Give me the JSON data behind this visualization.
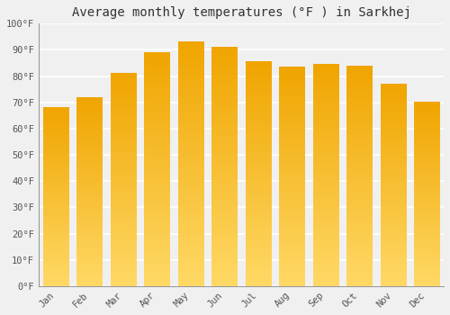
{
  "title": "Average monthly temperatures (°F ) in Sarkhej",
  "months": [
    "Jan",
    "Feb",
    "Mar",
    "Apr",
    "May",
    "Jun",
    "Jul",
    "Aug",
    "Sep",
    "Oct",
    "Nov",
    "Dec"
  ],
  "values": [
    68,
    72,
    81,
    89,
    93,
    91,
    85.5,
    83.5,
    84.5,
    84,
    77,
    70
  ],
  "bar_color_top": "#F0A500",
  "bar_color_bottom": "#FFD966",
  "background_color": "#F0F0F0",
  "ylim": [
    0,
    100
  ],
  "yticks": [
    0,
    10,
    20,
    30,
    40,
    50,
    60,
    70,
    80,
    90,
    100
  ],
  "ytick_labels": [
    "0°F",
    "10°F",
    "20°F",
    "30°F",
    "40°F",
    "50°F",
    "60°F",
    "70°F",
    "80°F",
    "90°F",
    "100°F"
  ],
  "title_fontsize": 10,
  "tick_fontsize": 7.5,
  "grid_color": "#FFFFFF",
  "spine_color": "#999999",
  "bar_width": 0.75
}
